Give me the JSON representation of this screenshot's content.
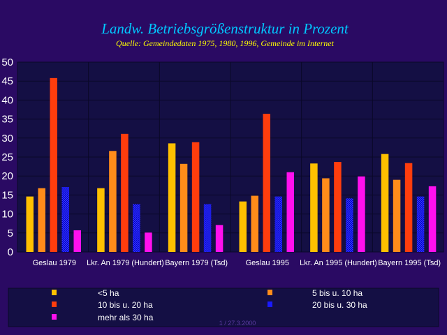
{
  "chart_data": {
    "type": "bar",
    "title": "Landw. Betriebsgrößenstruktur in Prozent",
    "subtitle": "Quelle: Gemeindedaten 1975, 1980, 1996, Gemeinde im Internet",
    "xlabel": "",
    "ylabel": "",
    "ylim": [
      0,
      50
    ],
    "yticks": [
      0,
      5,
      10,
      15,
      20,
      25,
      30,
      35,
      40,
      45,
      50
    ],
    "grid": true,
    "legend_position": "bottom",
    "categories": [
      "Geslau 1979",
      "Lkr. An 1979 (Hundert)",
      "Bayern 1979 (Tsd)",
      "Geslau 1995",
      "Lkr. An 1995 (Hundert)",
      "Bayern 1995 (Tsd)"
    ],
    "series": [
      {
        "name": "<5 ha",
        "color": "#ffc000",
        "values": [
          14.6,
          16.8,
          28.6,
          13.3,
          23.3,
          25.8
        ]
      },
      {
        "name": "5  bis u. 10 ha",
        "color": "#ff8c1a",
        "values": [
          16.8,
          26.6,
          23.2,
          14.8,
          19.4,
          19.0
        ]
      },
      {
        "name": "10 bis u. 20 ha",
        "color": "#ff3d0d",
        "values": [
          45.8,
          31.1,
          28.9,
          36.4,
          23.7,
          23.4
        ]
      },
      {
        "name": "20 bis u. 30 ha",
        "color": "#1a1aff",
        "pattern": "dots",
        "values": [
          17.1,
          12.6,
          12.6,
          14.6,
          14.1,
          14.6
        ]
      },
      {
        "name": "mehr als 30 ha",
        "color": "#ff10ee",
        "values": [
          5.7,
          5.1,
          7.1,
          21.0,
          19.9,
          17.3
        ]
      }
    ]
  },
  "colors": {
    "background": "#2a0a63",
    "plot_background": "#140f44",
    "grid": "#0a0828",
    "title": "#00c8ff",
    "subtitle": "#ffff00"
  },
  "footer": {
    "text": "1 / 27.3.2000"
  }
}
